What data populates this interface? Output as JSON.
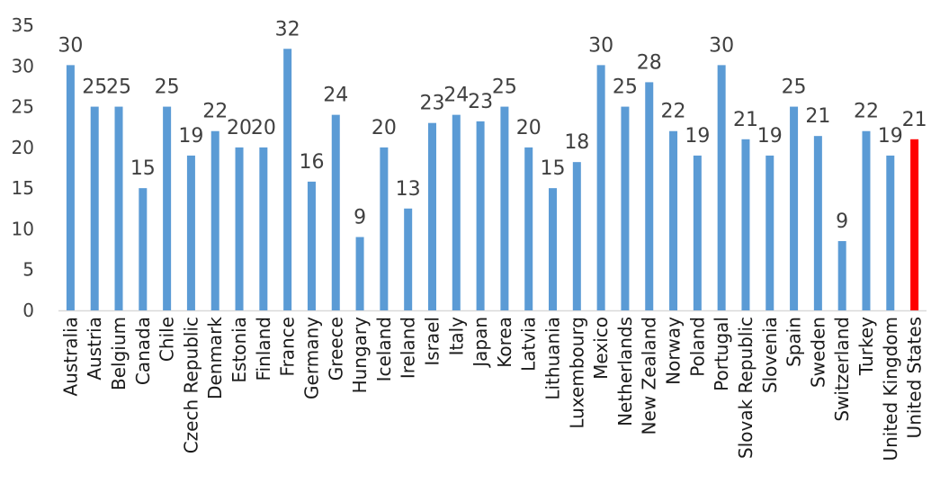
{
  "chart_data": {
    "type": "bar",
    "title": "",
    "xlabel": "",
    "ylabel": "",
    "ylim": [
      0,
      35
    ],
    "yticks": [
      0,
      5,
      10,
      15,
      20,
      25,
      30,
      35
    ],
    "grid": false,
    "legend": "none",
    "bar_color": "#5b9bd5",
    "highlight_color": "#ff0000",
    "highlight_category": "United States",
    "categories": [
      "Australia",
      "Austria",
      "Belgium",
      "Canada",
      "Chile",
      "Czech Republic",
      "Denmark",
      "Estonia",
      "Finland",
      "France",
      "Germany",
      "Greece",
      "Hungary",
      "Iceland",
      "Ireland",
      "Israel",
      "Italy",
      "Japan",
      "Korea",
      "Latvia",
      "Lithuania",
      "Luxembourg",
      "Mexico",
      "Netherlands",
      "New Zealand",
      "Norway",
      "Poland",
      "Portugal",
      "Slovak Republic",
      "Slovenia",
      "Spain",
      "Sweden",
      "Switzerland",
      "Turkey",
      "United Kingdom",
      "United States"
    ],
    "values": [
      30.1,
      25,
      25,
      15,
      25,
      19,
      22,
      20,
      20,
      32.1,
      15.8,
      24,
      9,
      20,
      12.5,
      23,
      24,
      23.2,
      25,
      20,
      15,
      18.2,
      30.1,
      25,
      28,
      22,
      19,
      30.1,
      21,
      19,
      25,
      21.4,
      8.5,
      22,
      19,
      21
    ],
    "value_labels": [
      "30",
      "25",
      "25",
      "15",
      "25",
      "19",
      "22",
      "20",
      "20",
      "32",
      "16",
      "24",
      "9",
      "20",
      "13",
      "23",
      "24",
      "23",
      "25",
      "20",
      "15",
      "18",
      "30",
      "25",
      "28",
      "22",
      "19",
      "30",
      "21",
      "19",
      "25",
      "21",
      "9",
      "22",
      "19",
      "21"
    ]
  }
}
